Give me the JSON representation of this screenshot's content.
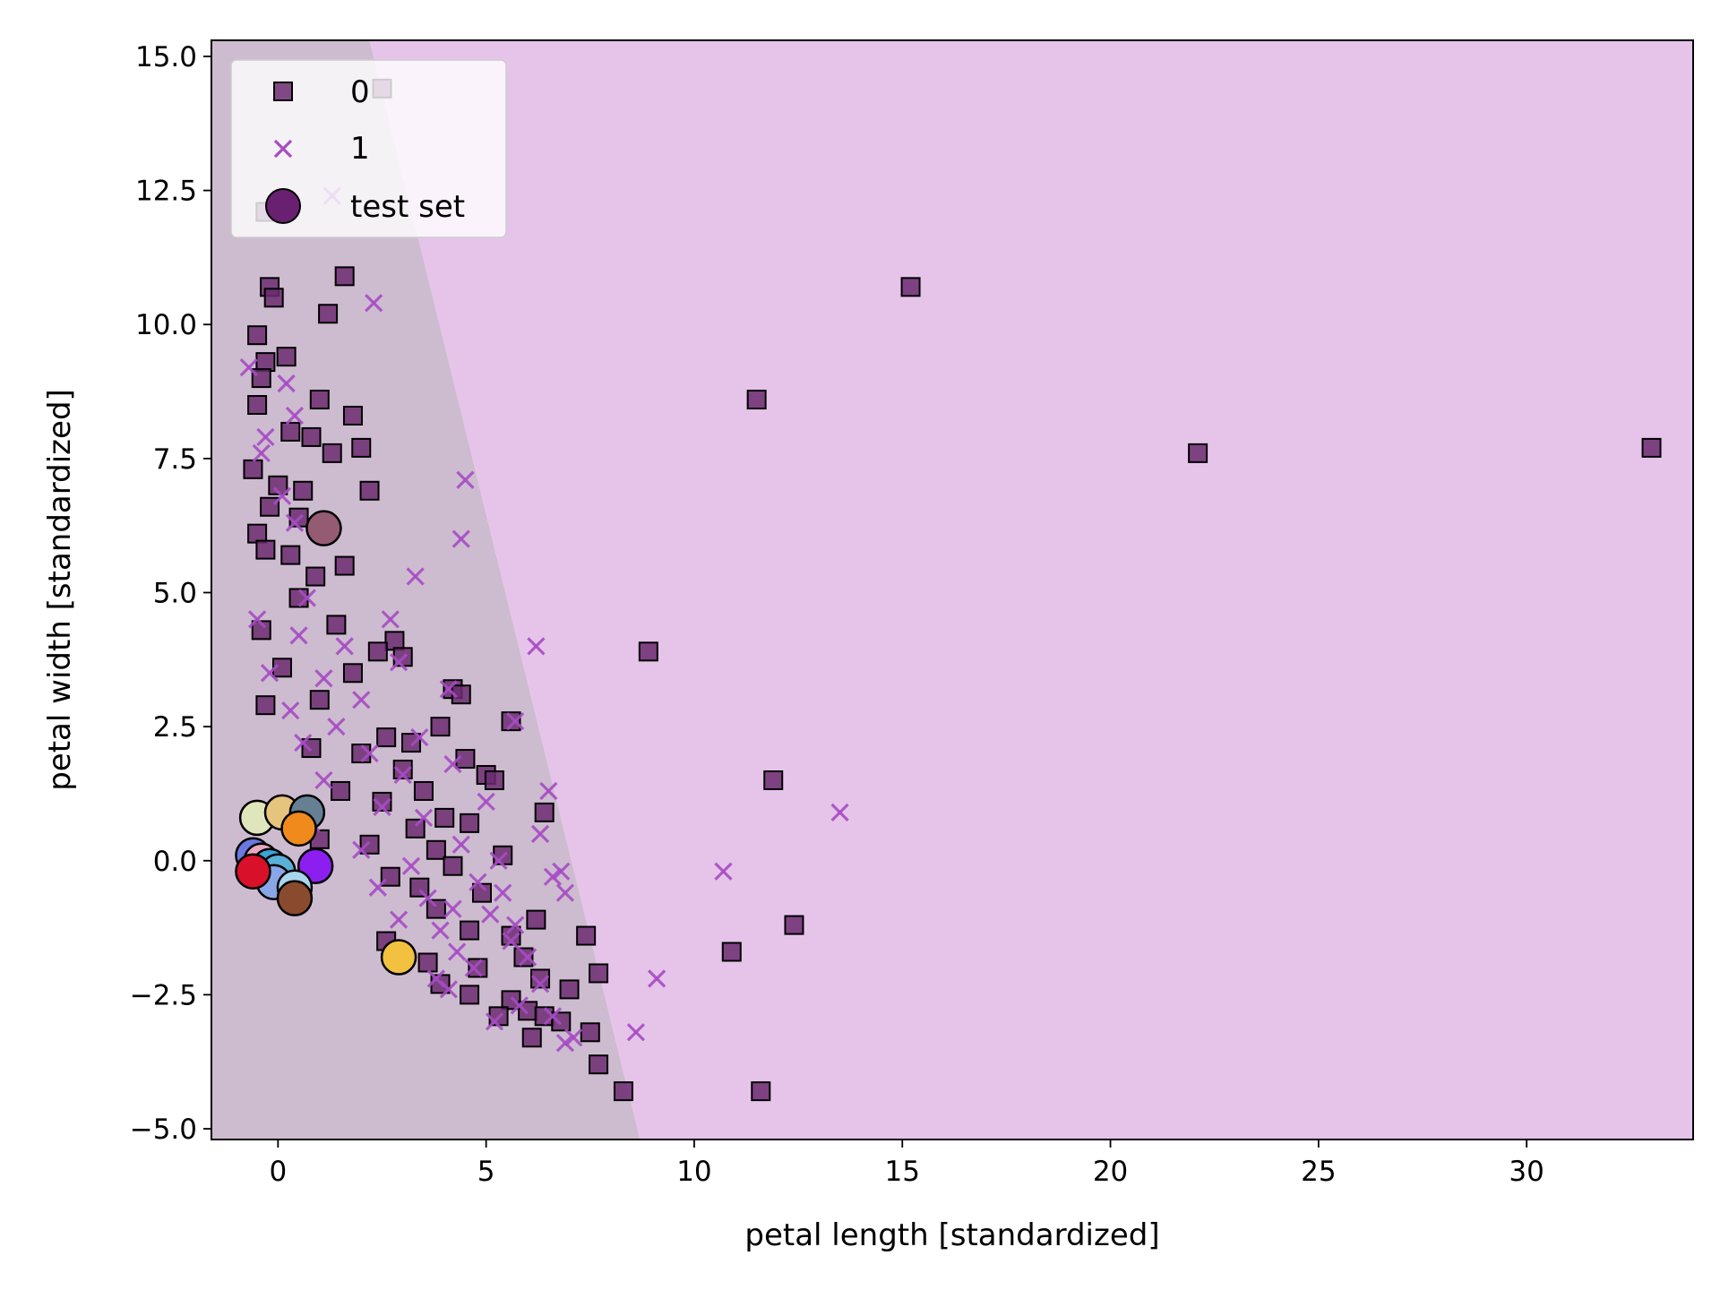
{
  "chart_data": {
    "type": "scatter",
    "title": "",
    "xlabel": "petal length [standardized]",
    "ylabel": "petal width [standardized]",
    "xlim": [
      -1.6,
      34.0
    ],
    "ylim": [
      -5.2,
      15.3
    ],
    "x_ticks": [
      0,
      5,
      10,
      15,
      20,
      25,
      30
    ],
    "y_ticks": [
      -5.0,
      -2.5,
      0.0,
      2.5,
      5.0,
      7.5,
      10.0,
      12.5,
      15.0
    ],
    "x_tick_labels": [
      "0",
      "5",
      "10",
      "15",
      "20",
      "25",
      "30"
    ],
    "y_tick_labels": [
      "−5.0",
      "−2.5",
      "0.0",
      "2.5",
      "5.0",
      "7.5",
      "10.0",
      "12.5",
      "15.0"
    ],
    "grid": false,
    "legend_position": "top-left",
    "decision_regions": [
      {
        "class": "0",
        "color": "#cdbccf",
        "polygon": [
          [
            -1.6,
            15.3
          ],
          [
            2.2,
            15.3
          ],
          [
            8.7,
            -5.2
          ],
          [
            -1.6,
            -5.2
          ]
        ]
      },
      {
        "class": "1",
        "color": "#e6c4ea",
        "polygon": [
          [
            2.2,
            15.3
          ],
          [
            34.0,
            15.3
          ],
          [
            34.0,
            -5.2
          ],
          [
            8.7,
            -5.2
          ]
        ]
      }
    ],
    "series": [
      {
        "name": "0",
        "marker": "square",
        "color": "#6b2c70",
        "edge_color": "#000000",
        "points": [
          [
            2.5,
            14.4
          ],
          [
            -0.3,
            12.1
          ],
          [
            1.6,
            10.9
          ],
          [
            -0.2,
            10.7
          ],
          [
            -0.1,
            10.5
          ],
          [
            15.2,
            10.7
          ],
          [
            1.2,
            10.2
          ],
          [
            -0.5,
            9.8
          ],
          [
            0.2,
            9.4
          ],
          [
            -0.3,
            9.3
          ],
          [
            -0.4,
            9.0
          ],
          [
            1.0,
            8.6
          ],
          [
            11.5,
            8.6
          ],
          [
            -0.5,
            8.5
          ],
          [
            1.8,
            8.3
          ],
          [
            0.3,
            8.0
          ],
          [
            0.8,
            7.9
          ],
          [
            1.3,
            7.6
          ],
          [
            2.0,
            7.7
          ],
          [
            22.1,
            7.6
          ],
          [
            33.0,
            7.7
          ],
          [
            -0.6,
            7.3
          ],
          [
            0.0,
            7.0
          ],
          [
            0.6,
            6.9
          ],
          [
            2.2,
            6.9
          ],
          [
            -0.2,
            6.6
          ],
          [
            0.5,
            6.4
          ],
          [
            -0.5,
            6.1
          ],
          [
            1.6,
            5.5
          ],
          [
            0.3,
            5.7
          ],
          [
            -0.3,
            5.8
          ],
          [
            0.9,
            5.3
          ],
          [
            0.5,
            4.9
          ],
          [
            1.4,
            4.4
          ],
          [
            2.8,
            4.1
          ],
          [
            -0.4,
            4.3
          ],
          [
            2.4,
            3.9
          ],
          [
            3.0,
            3.8
          ],
          [
            8.9,
            3.9
          ],
          [
            0.1,
            3.6
          ],
          [
            1.8,
            3.5
          ],
          [
            4.2,
            3.2
          ],
          [
            4.4,
            3.1
          ],
          [
            1.0,
            3.0
          ],
          [
            -0.3,
            2.9
          ],
          [
            5.6,
            2.6
          ],
          [
            3.9,
            2.5
          ],
          [
            2.6,
            2.3
          ],
          [
            3.2,
            2.2
          ],
          [
            0.8,
            2.1
          ],
          [
            2.0,
            2.0
          ],
          [
            4.5,
            1.9
          ],
          [
            3.0,
            1.7
          ],
          [
            5.0,
            1.6
          ],
          [
            5.2,
            1.5
          ],
          [
            11.9,
            1.5
          ],
          [
            1.5,
            1.3
          ],
          [
            3.5,
            1.3
          ],
          [
            2.5,
            1.1
          ],
          [
            6.4,
            0.9
          ],
          [
            4.0,
            0.8
          ],
          [
            4.6,
            0.7
          ],
          [
            3.3,
            0.6
          ],
          [
            1.0,
            0.4
          ],
          [
            2.2,
            0.3
          ],
          [
            3.8,
            0.2
          ],
          [
            5.4,
            0.1
          ],
          [
            4.2,
            -0.1
          ],
          [
            2.7,
            -0.3
          ],
          [
            3.4,
            -0.5
          ],
          [
            4.9,
            -0.6
          ],
          [
            3.8,
            -0.9
          ],
          [
            6.2,
            -1.1
          ],
          [
            12.4,
            -1.2
          ],
          [
            4.6,
            -1.3
          ],
          [
            5.6,
            -1.4
          ],
          [
            7.4,
            -1.4
          ],
          [
            2.6,
            -1.5
          ],
          [
            10.9,
            -1.7
          ],
          [
            5.9,
            -1.8
          ],
          [
            3.6,
            -1.9
          ],
          [
            4.8,
            -2.0
          ],
          [
            7.7,
            -2.1
          ],
          [
            6.3,
            -2.2
          ],
          [
            3.9,
            -2.3
          ],
          [
            7.0,
            -2.4
          ],
          [
            4.6,
            -2.5
          ],
          [
            5.6,
            -2.6
          ],
          [
            6.0,
            -2.8
          ],
          [
            6.4,
            -2.9
          ],
          [
            5.3,
            -2.9
          ],
          [
            6.8,
            -3.0
          ],
          [
            7.5,
            -3.2
          ],
          [
            6.1,
            -3.3
          ],
          [
            7.7,
            -3.8
          ],
          [
            8.3,
            -4.3
          ],
          [
            11.6,
            -4.3
          ]
        ]
      },
      {
        "name": "1",
        "marker": "x",
        "color": "#a64bc3",
        "points": [
          [
            1.3,
            12.4
          ],
          [
            2.3,
            10.4
          ],
          [
            -0.7,
            9.2
          ],
          [
            0.2,
            8.9
          ],
          [
            0.4,
            8.3
          ],
          [
            -0.3,
            7.9
          ],
          [
            -0.4,
            7.6
          ],
          [
            4.5,
            7.1
          ],
          [
            0.1,
            6.8
          ],
          [
            0.4,
            6.3
          ],
          [
            4.4,
            6.0
          ],
          [
            3.3,
            5.3
          ],
          [
            0.7,
            4.9
          ],
          [
            -0.5,
            4.5
          ],
          [
            2.7,
            4.5
          ],
          [
            0.5,
            4.2
          ],
          [
            1.6,
            4.0
          ],
          [
            6.2,
            4.0
          ],
          [
            2.9,
            3.7
          ],
          [
            -0.2,
            3.5
          ],
          [
            1.1,
            3.4
          ],
          [
            4.1,
            3.2
          ],
          [
            2.0,
            3.0
          ],
          [
            0.3,
            2.8
          ],
          [
            5.7,
            2.6
          ],
          [
            1.4,
            2.5
          ],
          [
            3.4,
            2.3
          ],
          [
            0.6,
            2.2
          ],
          [
            2.2,
            2.0
          ],
          [
            4.2,
            1.8
          ],
          [
            3.0,
            1.6
          ],
          [
            1.1,
            1.5
          ],
          [
            6.5,
            1.3
          ],
          [
            5.0,
            1.1
          ],
          [
            2.5,
            1.0
          ],
          [
            13.5,
            0.9
          ],
          [
            3.5,
            0.8
          ],
          [
            0.8,
            0.7
          ],
          [
            6.3,
            0.5
          ],
          [
            4.4,
            0.3
          ],
          [
            2.0,
            0.2
          ],
          [
            5.3,
            0.0
          ],
          [
            3.2,
            -0.1
          ],
          [
            10.7,
            -0.2
          ],
          [
            6.8,
            -0.2
          ],
          [
            6.6,
            -0.3
          ],
          [
            4.8,
            -0.4
          ],
          [
            2.4,
            -0.5
          ],
          [
            5.4,
            -0.6
          ],
          [
            6.9,
            -0.6
          ],
          [
            3.6,
            -0.7
          ],
          [
            4.2,
            -0.9
          ],
          [
            5.1,
            -1.0
          ],
          [
            2.9,
            -1.1
          ],
          [
            5.7,
            -1.2
          ],
          [
            3.9,
            -1.3
          ],
          [
            5.6,
            -1.5
          ],
          [
            4.3,
            -1.7
          ],
          [
            6.0,
            -1.8
          ],
          [
            4.7,
            -2.0
          ],
          [
            9.1,
            -2.2
          ],
          [
            3.8,
            -2.2
          ],
          [
            6.3,
            -2.3
          ],
          [
            4.1,
            -2.4
          ],
          [
            5.8,
            -2.7
          ],
          [
            6.6,
            -2.9
          ],
          [
            5.2,
            -3.0
          ],
          [
            8.6,
            -3.2
          ],
          [
            7.1,
            -3.3
          ],
          [
            6.9,
            -3.4
          ]
        ]
      },
      {
        "name": "test set",
        "marker": "circle",
        "color": "#6a2070",
        "edge_color": "#000000",
        "points": [
          [
            1.1,
            6.2
          ],
          [
            -0.5,
            0.8
          ],
          [
            0.1,
            0.9
          ],
          [
            0.7,
            0.9
          ],
          [
            0.5,
            0.6
          ],
          [
            0.9,
            -0.1
          ],
          [
            -0.6,
            0.1
          ],
          [
            -0.4,
            0.0
          ],
          [
            -0.2,
            -0.1
          ],
          [
            0.0,
            -0.2
          ],
          [
            -0.1,
            -0.4
          ],
          [
            0.4,
            -0.5
          ],
          [
            0.4,
            -0.7
          ],
          [
            -0.6,
            -0.2
          ],
          [
            2.9,
            -1.8
          ]
        ],
        "point_colors": [
          "#955b73",
          "#dfe6bb",
          "#e5c47d",
          "#667f93",
          "#f08a1c",
          "#8c1ff0",
          "#6a78e0",
          "#e8a8c0",
          "#3aa4d6",
          "#5ab0d8",
          "#88a6e8",
          "#a8d6ee",
          "#8a4a2e",
          "#d9102a",
          "#f2c140"
        ]
      }
    ]
  }
}
